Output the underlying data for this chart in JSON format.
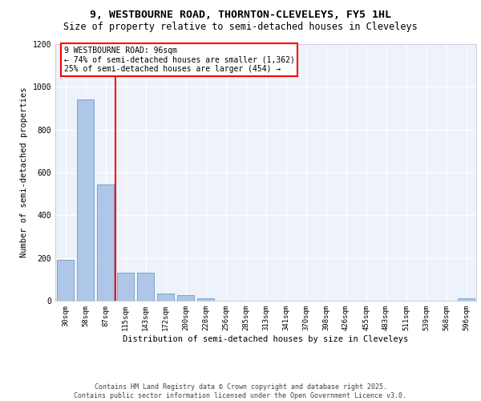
{
  "title_line1": "9, WESTBOURNE ROAD, THORNTON-CLEVELEYS, FY5 1HL",
  "title_line2": "Size of property relative to semi-detached houses in Cleveleys",
  "xlabel": "Distribution of semi-detached houses by size in Cleveleys",
  "ylabel": "Number of semi-detached properties",
  "categories": [
    "30sqm",
    "58sqm",
    "87sqm",
    "115sqm",
    "143sqm",
    "172sqm",
    "200sqm",
    "228sqm",
    "256sqm",
    "285sqm",
    "313sqm",
    "341sqm",
    "370sqm",
    "398sqm",
    "426sqm",
    "455sqm",
    "483sqm",
    "511sqm",
    "539sqm",
    "568sqm",
    "596sqm"
  ],
  "values": [
    190,
    940,
    545,
    130,
    130,
    35,
    25,
    10,
    0,
    0,
    0,
    0,
    0,
    0,
    0,
    0,
    0,
    0,
    0,
    0,
    10
  ],
  "bar_color": "#aec6e8",
  "bar_edge_color": "#5a8fc0",
  "red_line_x": 2.5,
  "annotation_title": "9 WESTBOURNE ROAD: 96sqm",
  "annotation_line2": "← 74% of semi-detached houses are smaller (1,362)",
  "annotation_line3": "25% of semi-detached houses are larger (454) →",
  "annotation_box_color": "#ff0000",
  "ylim": [
    0,
    1200
  ],
  "yticks": [
    0,
    200,
    400,
    600,
    800,
    1000,
    1200
  ],
  "footer": "Contains HM Land Registry data © Crown copyright and database right 2025.\nContains public sector information licensed under the Open Government Licence v3.0.",
  "background_color": "#eef2fb",
  "grid_color": "#ffffff",
  "title_fontsize": 9.5,
  "subtitle_fontsize": 8.5,
  "axis_label_fontsize": 7.5,
  "tick_fontsize": 6.5,
  "annotation_fontsize": 7,
  "footer_fontsize": 6
}
